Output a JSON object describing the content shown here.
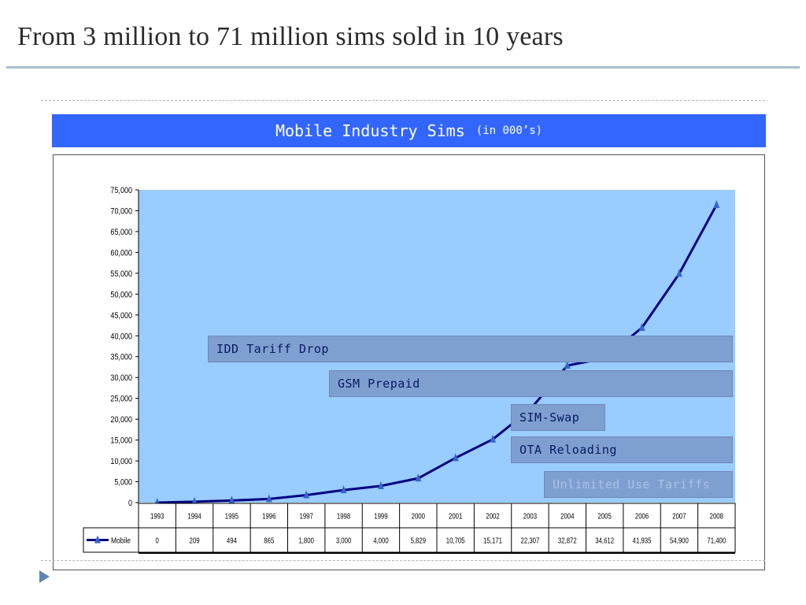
{
  "slide": {
    "title": "From 3 million to 71 million sims sold in 10 years"
  },
  "banner": {
    "title": "Mobile Industry Sims",
    "unit": "(in 000’s)"
  },
  "annotations": [
    {
      "text": "IDD Tariff Drop"
    },
    {
      "text": "GSM Prepaid"
    },
    {
      "text": "SIM-Swap"
    },
    {
      "text": "OTA Reloading"
    },
    {
      "text": "Unlimited Use Tariffs"
    }
  ],
  "colors": {
    "plot_background": "#99ccff",
    "line": "#000080",
    "marker": "#3366cc",
    "banner": "#3366ff"
  },
  "chart_data": {
    "type": "line",
    "x": [
      "1993",
      "1994",
      "1995",
      "1996",
      "1997",
      "1998",
      "1999",
      "2000",
      "2001",
      "2002",
      "2003",
      "2004",
      "2005",
      "2006",
      "2007",
      "2008"
    ],
    "series": [
      {
        "name": "Mobile",
        "values": [
          0,
          209,
          494,
          865,
          1800,
          3000,
          4000,
          5829,
          10705,
          15171,
          22307,
          32872,
          34612,
          41935,
          54900,
          71400
        ],
        "value_labels": [
          "0",
          "209",
          "494",
          "865",
          "1,800",
          "3,000",
          "4,000",
          "5,829",
          "10,705",
          "15,171",
          "22,307",
          "32,872",
          "34,612",
          "41,935",
          "54,900",
          "71,400"
        ]
      }
    ],
    "y_ticks": [
      "0",
      "5,000",
      "10,000",
      "15,000",
      "20,000",
      "25,000",
      "30,000",
      "35,000",
      "40,000",
      "45,000",
      "50,000",
      "55,000",
      "60,000",
      "65,000",
      "70,000",
      "75,000"
    ],
    "ylim": [
      0,
      75000
    ],
    "grid": false,
    "data_table": true
  }
}
